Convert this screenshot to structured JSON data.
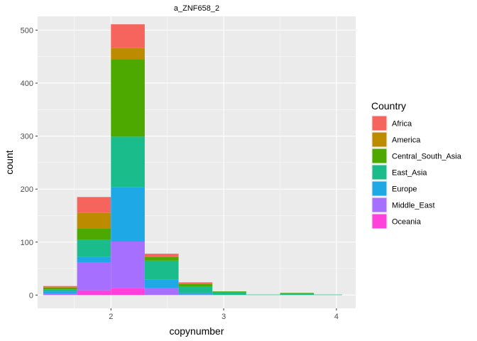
{
  "chart_data": {
    "type": "bar",
    "stacked": true,
    "title": "a_ZNF658_2",
    "xlabel": "copynumber",
    "ylabel": "count",
    "xlim": [
      1.35,
      4.17
    ],
    "ylim": [
      -25,
      526
    ],
    "x_ticks": [
      2,
      3,
      4
    ],
    "y_ticks": [
      0,
      100,
      200,
      300,
      400,
      500
    ],
    "bins": [
      [
        1.4,
        1.7
      ],
      [
        1.7,
        2.0
      ],
      [
        2.0,
        2.3
      ],
      [
        2.3,
        2.6
      ],
      [
        2.6,
        2.9
      ],
      [
        2.9,
        3.2
      ],
      [
        3.2,
        3.5
      ],
      [
        3.5,
        3.8
      ],
      [
        3.8,
        4.05
      ]
    ],
    "legend_title": "Country",
    "legend_position": "right",
    "series": [
      {
        "name": "Oceania",
        "color": "#FF40DB",
        "values": [
          0,
          9,
          13,
          0,
          0,
          0,
          0,
          0,
          0
        ]
      },
      {
        "name": "Middle_East",
        "color": "#A66FFF",
        "values": [
          3,
          52,
          88,
          13,
          1,
          0,
          0,
          0,
          0
        ]
      },
      {
        "name": "Europe",
        "color": "#1FA8E6",
        "values": [
          4,
          11,
          103,
          16,
          3,
          0,
          0,
          0,
          0
        ]
      },
      {
        "name": "East_Asia",
        "color": "#1BBC8C",
        "values": [
          4,
          33,
          95,
          36,
          12,
          6,
          1,
          2,
          1
        ]
      },
      {
        "name": "Central_South_Asia",
        "color": "#4DA800",
        "values": [
          3,
          21,
          146,
          7,
          5,
          1,
          0,
          2,
          0
        ]
      },
      {
        "name": "America",
        "color": "#BD8B00",
        "values": [
          1,
          29,
          21,
          0,
          0,
          0,
          0,
          0,
          0
        ]
      },
      {
        "name": "Africa",
        "color": "#F5645D",
        "values": [
          2,
          30,
          45,
          6,
          3,
          0,
          0,
          0,
          0
        ]
      }
    ],
    "legend_order": [
      "Africa",
      "America",
      "Central_South_Asia",
      "East_Asia",
      "Europe",
      "Middle_East",
      "Oceania"
    ]
  }
}
